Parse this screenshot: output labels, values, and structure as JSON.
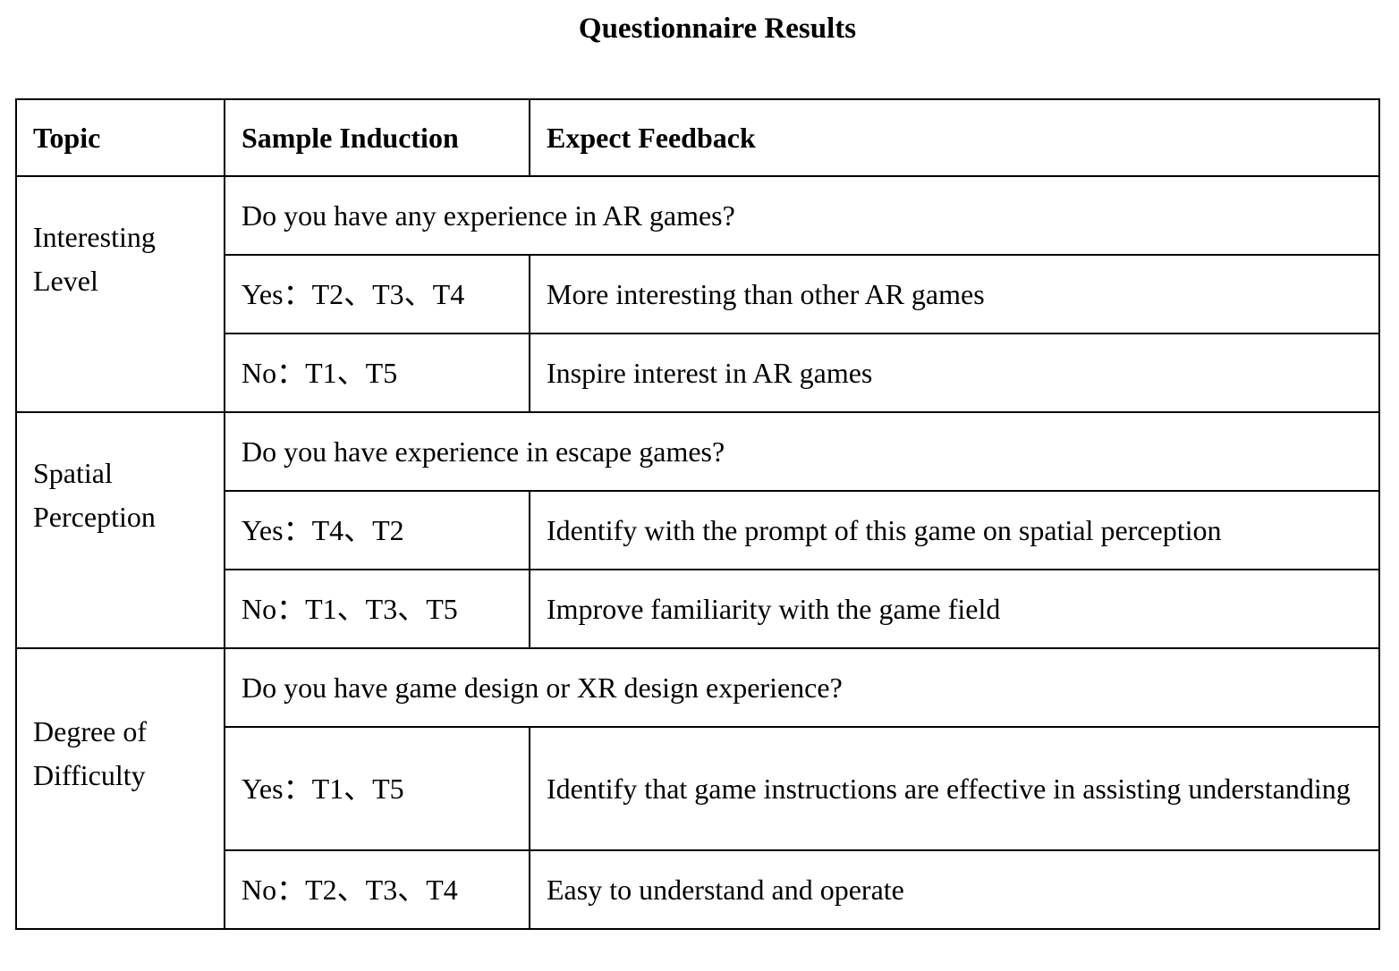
{
  "title": "Questionnaire Results",
  "headers": {
    "topic": "Topic",
    "sample": "Sample Induction",
    "feedback": "Expect Feedback"
  },
  "groups": [
    {
      "topic": "Interesting Level",
      "question": "Do you have any experience in AR games?",
      "yes_sample": "Yes：T2、T3、T4",
      "yes_feedback": "More interesting than other AR games",
      "no_sample": "No：T1、T5",
      "no_feedback": "Inspire interest in AR games"
    },
    {
      "topic": "Spatial Perception",
      "question": "Do you have experience in escape games?",
      "yes_sample": "Yes：T4、T2",
      "yes_feedback": "Identify with the prompt of this game on spatial perception",
      "no_sample": "No：T1、T3、T5",
      "no_feedback": "Improve familiarity with the game field"
    },
    {
      "topic": "Degree of Difficulty",
      "question": "Do you have game design or XR design experience?",
      "yes_sample": "Yes：T1、T5",
      "yes_feedback": "Identify that game instructions are effective in assisting understanding",
      "no_sample": "No：T2、T3、T4",
      "no_feedback": "Easy to understand and operate"
    }
  ]
}
